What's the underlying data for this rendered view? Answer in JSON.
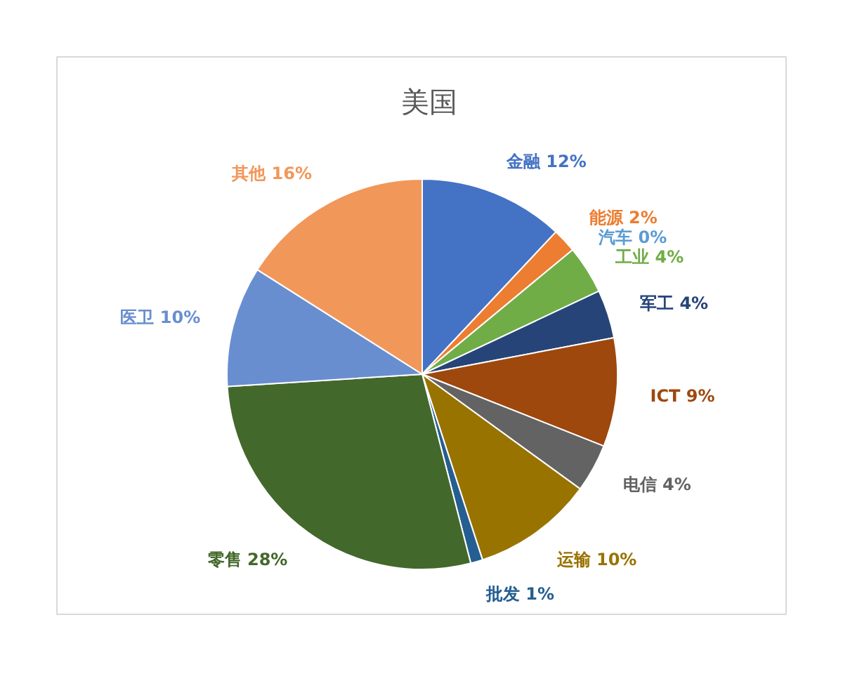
{
  "chart_data": {
    "type": "pie",
    "title": "美国",
    "categories": [
      "金融",
      "能源",
      "汽车",
      "工业",
      "军工",
      "ICT",
      "电信",
      "运输",
      "批发",
      "零售",
      "医卫",
      "其他"
    ],
    "values": [
      12,
      2,
      0,
      4,
      4,
      9,
      4,
      10,
      1,
      28,
      10,
      16
    ],
    "value_labels": [
      "12%",
      "2%",
      "0%",
      "4%",
      "4%",
      "9%",
      "4%",
      "10%",
      "1%",
      "28%",
      "10%",
      "16%"
    ],
    "colors": [
      "#4472c4",
      "#ed7d31",
      "#5b9bd5",
      "#70ad47",
      "#264478",
      "#9e480e",
      "#636363",
      "#997300",
      "#255e91",
      "#43682b",
      "#698ed0",
      "#f1975a"
    ]
  }
}
